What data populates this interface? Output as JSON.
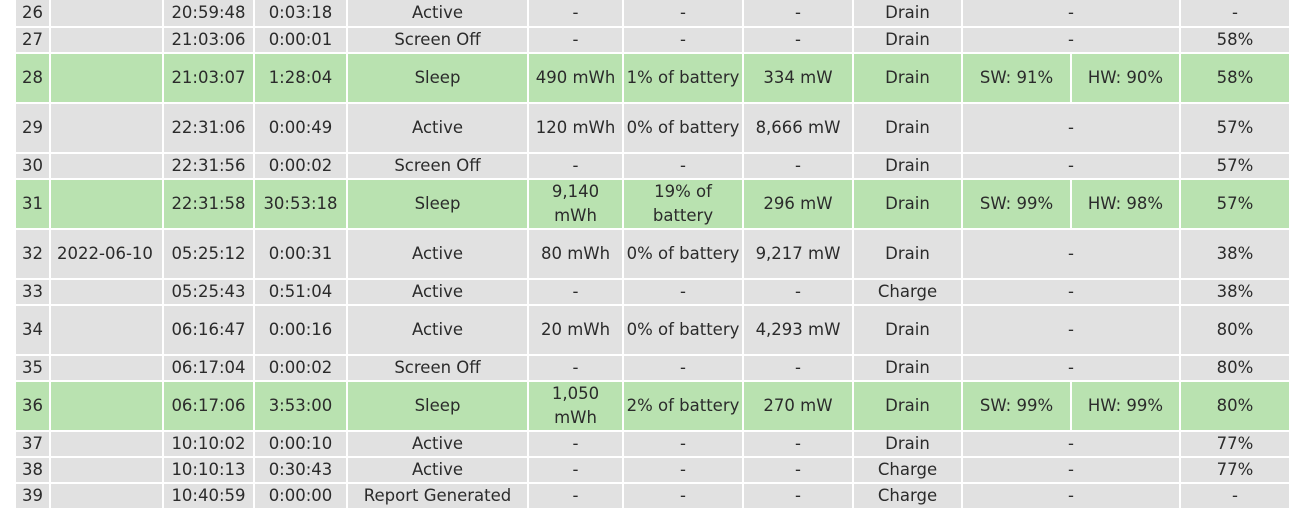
{
  "rows": [
    {
      "n": "26",
      "date": "",
      "time": "20:59:48",
      "duration": "0:03:18",
      "state": "Active",
      "energy": "-",
      "pct": "-",
      "rate": "-",
      "source": "Drain",
      "sw": "",
      "hw": "",
      "span": "-",
      "cap": "-"
    },
    {
      "n": "27",
      "date": "",
      "time": "21:03:06",
      "duration": "0:00:01",
      "state": "Screen Off",
      "energy": "-",
      "pct": "-",
      "rate": "-",
      "source": "Drain",
      "sw": "",
      "hw": "",
      "span": "-",
      "cap": "58%"
    },
    {
      "n": "28",
      "date": "",
      "time": "21:03:07",
      "duration": "1:28:04",
      "state": "Sleep",
      "energy": "490 mWh",
      "pct": "1% of battery",
      "rate": "334 mW",
      "source": "Drain",
      "sw": "SW: 91%",
      "hw": "HW: 90%",
      "span": "",
      "cap": "58%"
    },
    {
      "n": "29",
      "date": "",
      "time": "22:31:06",
      "duration": "0:00:49",
      "state": "Active",
      "energy": "120 mWh",
      "pct": "0% of battery",
      "rate": "8,666 mW",
      "source": "Drain",
      "sw": "",
      "hw": "",
      "span": "-",
      "cap": "57%"
    },
    {
      "n": "30",
      "date": "",
      "time": "22:31:56",
      "duration": "0:00:02",
      "state": "Screen Off",
      "energy": "-",
      "pct": "-",
      "rate": "-",
      "source": "Drain",
      "sw": "",
      "hw": "",
      "span": "-",
      "cap": "57%"
    },
    {
      "n": "31",
      "date": "",
      "time": "22:31:58",
      "duration": "30:53:18",
      "state": "Sleep",
      "energy": "9,140 mWh",
      "pct": "19% of battery",
      "rate": "296 mW",
      "source": "Drain",
      "sw": "SW: 99%",
      "hw": "HW: 98%",
      "span": "",
      "cap": "57%"
    },
    {
      "n": "32",
      "date": "2022-06-10",
      "time": "05:25:12",
      "duration": "0:00:31",
      "state": "Active",
      "energy": "80 mWh",
      "pct": "0% of battery",
      "rate": "9,217 mW",
      "source": "Drain",
      "sw": "",
      "hw": "",
      "span": "-",
      "cap": "38%"
    },
    {
      "n": "33",
      "date": "",
      "time": "05:25:43",
      "duration": "0:51:04",
      "state": "Active",
      "energy": "-",
      "pct": "-",
      "rate": "-",
      "source": "Charge",
      "sw": "",
      "hw": "",
      "span": "-",
      "cap": "38%"
    },
    {
      "n": "34",
      "date": "",
      "time": "06:16:47",
      "duration": "0:00:16",
      "state": "Active",
      "energy": "20 mWh",
      "pct": "0% of battery",
      "rate": "4,293 mW",
      "source": "Drain",
      "sw": "",
      "hw": "",
      "span": "-",
      "cap": "80%"
    },
    {
      "n": "35",
      "date": "",
      "time": "06:17:04",
      "duration": "0:00:02",
      "state": "Screen Off",
      "energy": "-",
      "pct": "-",
      "rate": "-",
      "source": "Drain",
      "sw": "",
      "hw": "",
      "span": "-",
      "cap": "80%"
    },
    {
      "n": "36",
      "date": "",
      "time": "06:17:06",
      "duration": "3:53:00",
      "state": "Sleep",
      "energy": "1,050 mWh",
      "pct": "2% of battery",
      "rate": "270 mW",
      "source": "Drain",
      "sw": "SW: 99%",
      "hw": "HW: 99%",
      "span": "",
      "cap": "80%"
    },
    {
      "n": "37",
      "date": "",
      "time": "10:10:02",
      "duration": "0:00:10",
      "state": "Active",
      "energy": "-",
      "pct": "-",
      "rate": "-",
      "source": "Drain",
      "sw": "",
      "hw": "",
      "span": "-",
      "cap": "77%"
    },
    {
      "n": "38",
      "date": "",
      "time": "10:10:13",
      "duration": "0:30:43",
      "state": "Active",
      "energy": "-",
      "pct": "-",
      "rate": "-",
      "source": "Charge",
      "sw": "",
      "hw": "",
      "span": "-",
      "cap": "77%"
    },
    {
      "n": "39",
      "date": "",
      "time": "10:40:59",
      "duration": "0:00:00",
      "state": "Report Generated",
      "energy": "-",
      "pct": "-",
      "rate": "-",
      "source": "Charge",
      "sw": "",
      "hw": "",
      "span": "-",
      "cap": "-"
    }
  ]
}
